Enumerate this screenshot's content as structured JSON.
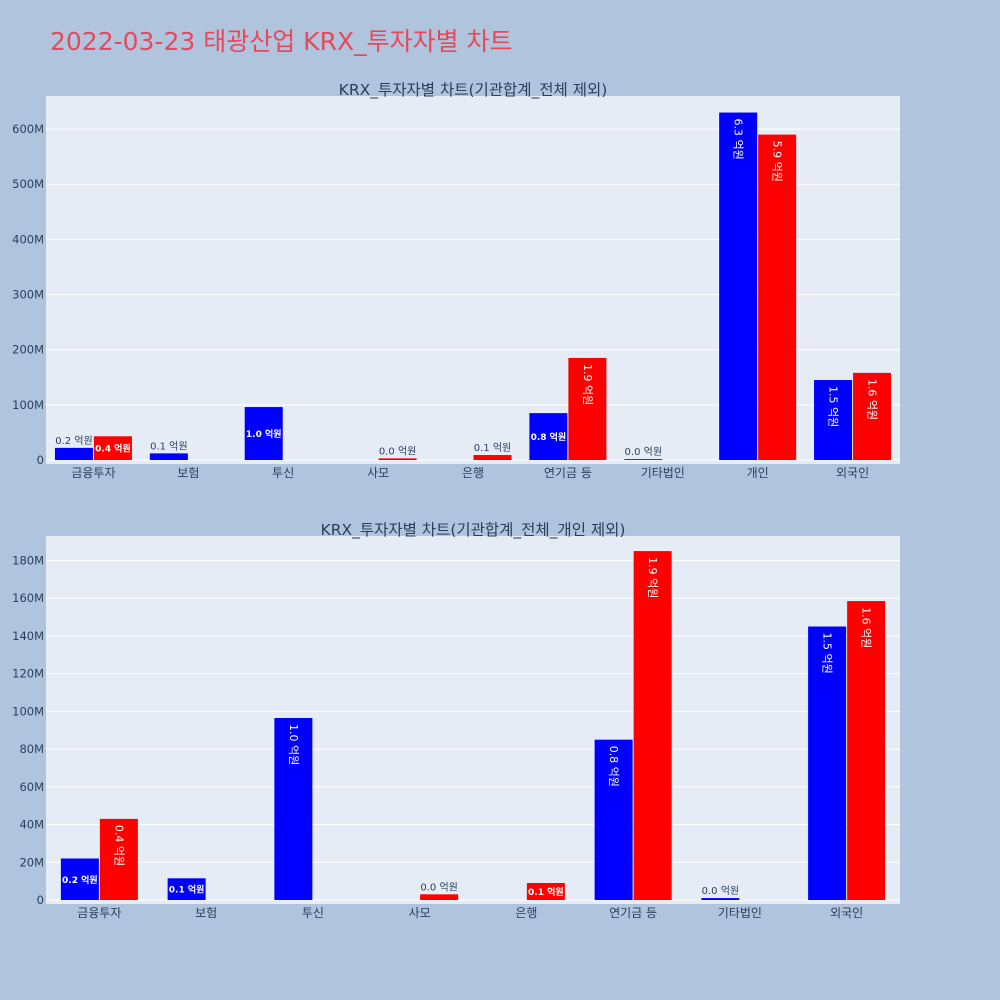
{
  "page_title": "2022-03-23 태광산업 KRX_투자자별 차트",
  "colors": {
    "background": "#b0c4de",
    "plot_background": "#e5ecf6",
    "grid": "#ffffff",
    "title": "#e8495a",
    "text": "#2a3f5f",
    "series_a": "#0000ff",
    "series_b": "#ff0000"
  },
  "chart_data": [
    {
      "type": "bar",
      "title": "KRX_투자자별 차트(기관합계_전체 제외)",
      "xlabel": "",
      "ylabel": "",
      "categories": [
        "금융투자",
        "보험",
        "투신",
        "사모",
        "은행",
        "연기금 등",
        "기타법인",
        "개인",
        "외국인"
      ],
      "ylim": [
        0,
        660000000
      ],
      "yticks": [
        0,
        100000000,
        200000000,
        300000000,
        400000000,
        500000000,
        600000000
      ],
      "ytick_labels": [
        "0",
        "100M",
        "200M",
        "300M",
        "400M",
        "500M",
        "600M"
      ],
      "grid": true,
      "series": [
        {
          "color": "#0000ff",
          "values": [
            22000000,
            12000000,
            96000000,
            null,
            null,
            85000000,
            1000000,
            630000000,
            145000000
          ],
          "labels": [
            "0.2 억원",
            "0.1 억원",
            "1.0 억원",
            "",
            "",
            "0.8 억원",
            "0.0 억원",
            "6.3 억원",
            "1.5 억원"
          ]
        },
        {
          "color": "#ff0000",
          "values": [
            43000000,
            null,
            null,
            3000000,
            9000000,
            185000000,
            null,
            590000000,
            158000000
          ],
          "labels": [
            "0.4 억원",
            "",
            "",
            "0.0 억원",
            "0.1 억원",
            "1.9 억원",
            "",
            "5.9 억원",
            "1.6 억원"
          ]
        }
      ]
    },
    {
      "type": "bar",
      "title": "KRX_투자자별 차트(기관합계_전체_개인 제외)",
      "xlabel": "",
      "ylabel": "",
      "categories": [
        "금융투자",
        "보험",
        "투신",
        "사모",
        "은행",
        "연기금 등",
        "기타법인",
        "외국인"
      ],
      "ylim": [
        0,
        193000000
      ],
      "yticks": [
        0,
        20000000,
        40000000,
        60000000,
        80000000,
        100000000,
        120000000,
        140000000,
        160000000,
        180000000
      ],
      "ytick_labels": [
        "0",
        "20M",
        "40M",
        "60M",
        "80M",
        "100M",
        "120M",
        "140M",
        "160M",
        "180M"
      ],
      "grid": true,
      "series": [
        {
          "color": "#0000ff",
          "values": [
            22000000,
            11500000,
            96500000,
            null,
            null,
            85000000,
            1000000,
            145000000
          ],
          "labels": [
            "0.2 억원",
            "0.1 억원",
            "1.0 억원",
            "",
            "",
            "0.8 억원",
            "0.0 억원",
            "1.5 억원"
          ]
        },
        {
          "color": "#ff0000",
          "values": [
            43000000,
            null,
            null,
            3000000,
            9000000,
            185000000,
            null,
            158500000
          ],
          "labels": [
            "0.4 억원",
            "",
            "",
            "0.0 억원",
            "0.1 억원",
            "1.9 억원",
            "",
            "1.6 억원"
          ]
        }
      ]
    }
  ]
}
